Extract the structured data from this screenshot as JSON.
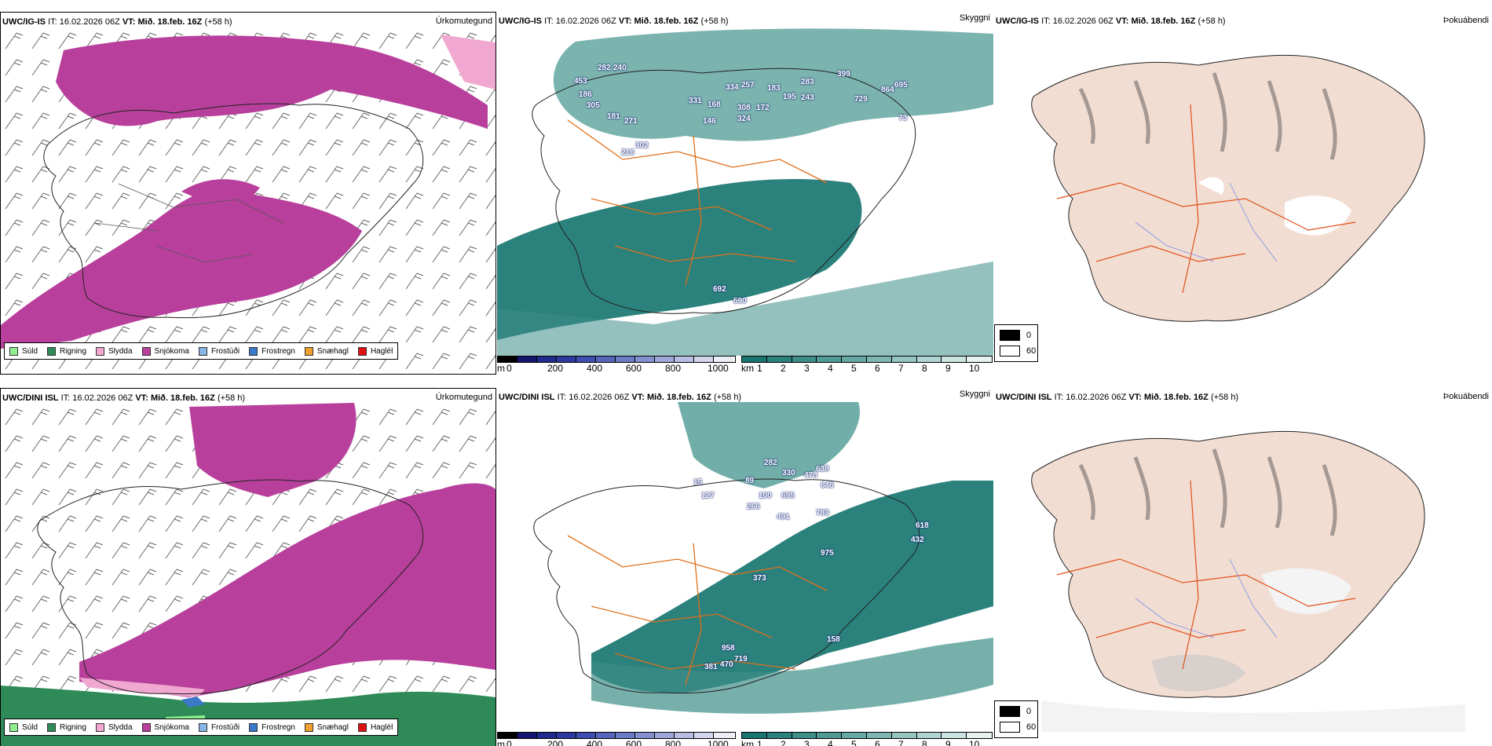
{
  "rows": [
    {
      "model": "UWC/IG-IS",
      "it_label": "IT:",
      "it_value": "16.02.2026 06Z",
      "vt_label": "VT:",
      "vt_value": "Mið. 18.feb. 16Z",
      "lead": "(+58 h)"
    },
    {
      "model": "UWC/DINI ISL",
      "it_label": "IT:",
      "it_value": "16.02.2026 06Z",
      "vt_label": "VT:",
      "vt_value": "Mið. 18.feb. 16Z",
      "lead": "(+58 h)"
    }
  ],
  "panel_titles": {
    "precip": "Úrkomutegund",
    "visibility": "Skyggni",
    "fog": "Þokuábendi"
  },
  "precip_legend": [
    {
      "label": "Súld",
      "color": "#90ee90"
    },
    {
      "label": "Rigning",
      "color": "#2e8b57"
    },
    {
      "label": "Slydda",
      "color": "#f0a8d0"
    },
    {
      "label": "Snjókoma",
      "color": "#b8409c"
    },
    {
      "label": "Frostúði",
      "color": "#87b5e8"
    },
    {
      "label": "Frostregn",
      "color": "#3a78c8"
    },
    {
      "label": "Snæhagl",
      "color": "#f0a030"
    },
    {
      "label": "Haglél",
      "color": "#e01010"
    }
  ],
  "cloudbase_scale": {
    "unit": "m",
    "ticks": [
      "0",
      "200",
      "400",
      "600",
      "800",
      "1000"
    ],
    "colors": [
      "#000000",
      "#14146e",
      "#1e2a8c",
      "#2c3aa0",
      "#3e4eb0",
      "#5566bb",
      "#6b7cc6",
      "#8490cf",
      "#9ea7d8",
      "#b8bde2",
      "#d2d5ec",
      "#eceef6"
    ]
  },
  "visibility_scale": {
    "unit": "km",
    "ticks": [
      "1",
      "2",
      "3",
      "4",
      "5",
      "6",
      "7",
      "8",
      "9",
      "10"
    ],
    "colors": [
      "#1a7570",
      "#2b817c",
      "#3d8d88",
      "#509a95",
      "#66a8a3",
      "#7db6b2",
      "#96c5c1",
      "#b0d4d1",
      "#cbe3e1",
      "#e6f2f1"
    ]
  },
  "fog_legend": [
    {
      "label": "0",
      "color": "#000000"
    },
    {
      "label": "60",
      "color": "#ffffff"
    }
  ],
  "cloudbase_labels_top": [
    "453",
    "282",
    "240",
    "186",
    "305",
    "181",
    "271",
    "216",
    "302",
    "331",
    "168",
    "146",
    "334",
    "257",
    "308",
    "324",
    "183",
    "172",
    "195",
    "243",
    "283",
    "399",
    "729",
    "864",
    "695",
    "73",
    "692",
    "590"
  ],
  "cloudbase_labels_bottom": [
    "15",
    "127",
    "89",
    "282",
    "330",
    "100",
    "266",
    "695",
    "491",
    "646",
    "638",
    "478",
    "783",
    "975",
    "618",
    "432",
    "373",
    "158",
    "958",
    "719",
    "381",
    "470"
  ]
}
